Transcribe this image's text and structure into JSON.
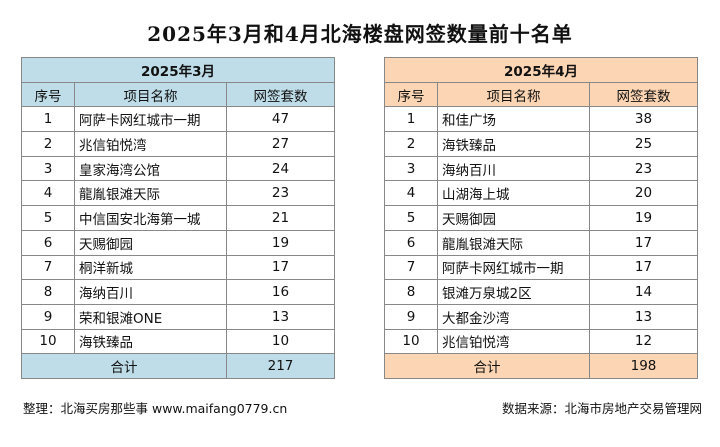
{
  "title": "2025年3月和4月北海楼盘网签数量前十名单",
  "tables": {
    "march": {
      "month": "2025年3月",
      "headers": [
        "序号",
        "项目名称",
        "网签套数"
      ],
      "rows": [
        [
          "1",
          "阿萨卡网红城市一期",
          "47"
        ],
        [
          "2",
          "兆信铂悦湾",
          "27"
        ],
        [
          "3",
          "皇家海湾公馆",
          "24"
        ],
        [
          "4",
          "龍胤银滩天际",
          "23"
        ],
        [
          "5",
          "中信国安北海第一城",
          "21"
        ],
        [
          "6",
          "天赐御园",
          "19"
        ],
        [
          "7",
          "桐洋新城",
          "17"
        ],
        [
          "8",
          "海纳百川",
          "16"
        ],
        [
          "9",
          "荣和银滩ONE",
          "13"
        ],
        [
          "10",
          "海铁臻品",
          "10"
        ]
      ],
      "total_label": "合计",
      "total_value": "217"
    },
    "april": {
      "month": "2025年4月",
      "headers": [
        "序号",
        "项目名称",
        "网签套数"
      ],
      "rows": [
        [
          "1",
          "和佳广场",
          "38"
        ],
        [
          "2",
          "海铁臻品",
          "25"
        ],
        [
          "3",
          "海纳百川",
          "23"
        ],
        [
          "4",
          "山湖海上城",
          "20"
        ],
        [
          "5",
          "天赐御园",
          "19"
        ],
        [
          "6",
          "龍胤银滩天际",
          "17"
        ],
        [
          "7",
          "阿萨卡网红城市一期",
          "17"
        ],
        [
          "8",
          "银滩万泉城2区",
          "14"
        ],
        [
          "9",
          "大都金沙湾",
          "13"
        ],
        [
          "10",
          "兆信铂悦湾",
          "12"
        ]
      ],
      "total_label": "合计",
      "total_value": "198"
    }
  },
  "footer": {
    "left": "整理：北海买房那些事 www.maifang0779.cn",
    "right": "数据来源：北海市房地产交易管理网"
  },
  "colors": {
    "march_header_bg": "#bfdde8",
    "april_header_bg": "#fcd5b4"
  }
}
